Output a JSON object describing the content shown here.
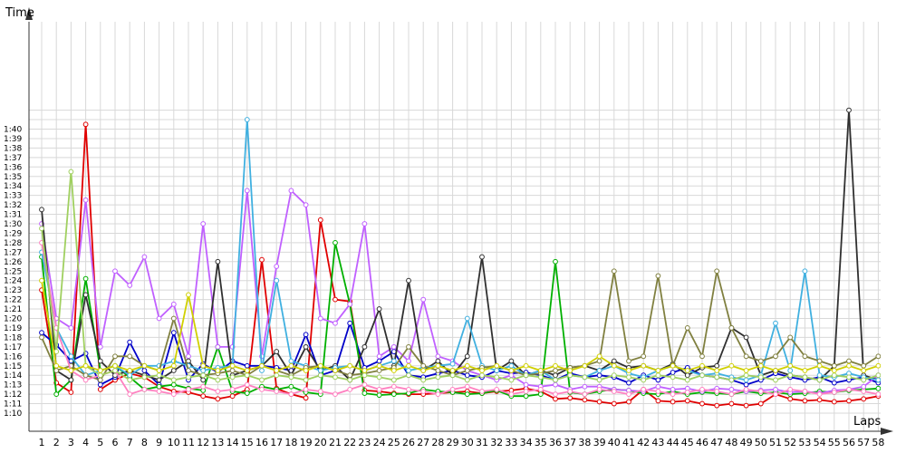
{
  "chart_data": {
    "type": "line",
    "title": "",
    "xlabel": "Laps",
    "ylabel": "Time",
    "x": [
      1,
      2,
      3,
      4,
      5,
      6,
      7,
      8,
      9,
      10,
      11,
      12,
      13,
      14,
      15,
      16,
      17,
      18,
      19,
      20,
      21,
      22,
      23,
      24,
      25,
      26,
      27,
      28,
      29,
      30,
      31,
      32,
      33,
      34,
      35,
      36,
      37,
      38,
      39,
      40,
      41,
      42,
      43,
      44,
      45,
      46,
      47,
      48,
      49,
      50,
      51,
      52,
      53,
      54,
      55,
      56,
      57,
      58
    ],
    "xlim": [
      1,
      58
    ],
    "ylim": [
      68,
      102
    ],
    "y_tick_values": [
      70,
      71,
      72,
      73,
      74,
      75,
      76,
      77,
      78,
      79,
      80,
      81,
      82,
      83,
      84,
      85,
      86,
      87,
      88,
      89,
      90,
      91,
      92,
      93,
      94,
      95,
      96,
      97,
      98,
      99,
      100
    ],
    "y_tick_labels": [
      "1:10",
      "1:11",
      "1:12",
      "1:13",
      "1:14",
      "1:15",
      "1:16",
      "1:17",
      "1:18",
      "1:19",
      "1:20",
      "1:21",
      "1:22",
      "1:23",
      "1:24",
      "1:25",
      "1:26",
      "1:27",
      "1:28",
      "1:29",
      "1:30",
      "1:31",
      "1:32",
      "1:33",
      "1:34",
      "1:35",
      "1:36",
      "1:37",
      "1:38",
      "1:39",
      "1:40"
    ],
    "x_tick_labels": [
      "1",
      "2",
      "3",
      "4",
      "5",
      "6",
      "7",
      "8",
      "9",
      "10",
      "11",
      "12",
      "13",
      "14",
      "15",
      "16",
      "17",
      "18",
      "19",
      "20",
      "21",
      "22",
      "23",
      "24",
      "25",
      "26",
      "27",
      "28",
      "29",
      "30",
      "31",
      "32",
      "33",
      "34",
      "35",
      "36",
      "37",
      "38",
      "39",
      "40",
      "41",
      "42",
      "43",
      "44",
      "45",
      "46",
      "47",
      "48",
      "49",
      "50",
      "51",
      "52",
      "53",
      "54",
      "55",
      "56",
      "57",
      "58"
    ],
    "grid": true,
    "legend": "none",
    "series": [
      {
        "color": "#e00000",
        "values": [
          83,
          73.2,
          72.2,
          100.5,
          72.5,
          73.5,
          74.2,
          73.8,
          72.8,
          72.3,
          72.2,
          71.8,
          71.5,
          71.8,
          72.5,
          86.2,
          72.6,
          72.0,
          71.6,
          90.4,
          82.0,
          81.8,
          72.4,
          72.3,
          72.1,
          72.0,
          72.0,
          72.1,
          72.2,
          72.3,
          72.1,
          72.3,
          72.4,
          72.6,
          72.3,
          71.5,
          71.6,
          71.4,
          71.2,
          71.0,
          71.2,
          72.5,
          71.3,
          71.2,
          71.3,
          71.0,
          70.8,
          71.0,
          70.8,
          71.0,
          72.0,
          71.5,
          71.3,
          71.4,
          71.2,
          71.3,
          71.5,
          71.8
        ]
      },
      {
        "color": "#0000c8",
        "values": [
          78.5,
          77.2,
          75.5,
          76.3,
          73.0,
          73.8,
          77.5,
          74.5,
          73.0,
          78.5,
          73.5,
          75.2,
          74.3,
          75.5,
          75.0,
          75.0,
          74.8,
          74.5,
          78.3,
          74.0,
          74.5,
          79.5,
          74.8,
          75.5,
          76.5,
          74.0,
          73.8,
          74.2,
          74.5,
          74.0,
          73.8,
          74.5,
          74.2,
          74.3,
          74.0,
          73.5,
          74.2,
          73.8,
          74.0,
          73.8,
          73.2,
          74.0,
          73.5,
          74.3,
          74.8,
          74.0,
          73.8,
          73.5,
          73.0,
          73.5,
          74.2,
          73.8,
          73.5,
          73.8,
          73.2,
          73.5,
          73.8,
          73.2
        ]
      },
      {
        "color": "#00b000",
        "values": [
          86.5,
          72.0,
          73.5,
          84.2,
          74.5,
          75.0,
          73.8,
          72.5,
          72.8,
          73.0,
          72.6,
          72.4,
          77.0,
          72.3,
          72.1,
          72.8,
          72.5,
          72.8,
          72.2,
          72.0,
          88.0,
          81.5,
          72.1,
          71.9,
          72.0,
          72.1,
          72.5,
          72.3,
          72.2,
          72.0,
          72.1,
          72.4,
          71.8,
          71.8,
          72.0,
          86.0,
          72.2,
          72.0,
          72.3,
          72.5,
          72.4,
          72.1,
          72.0,
          72.3,
          72.0,
          72.2,
          72.1,
          72.0,
          72.3,
          72.1,
          72.2,
          72.0,
          72.1,
          72.3,
          72.2,
          72.4,
          72.5,
          72.6
        ]
      },
      {
        "color": "#c060ff",
        "values": [
          90.0,
          80.0,
          79.0,
          92.5,
          77.0,
          85.0,
          83.5,
          86.5,
          80.0,
          81.5,
          76.0,
          90.0,
          77.0,
          77.0,
          93.5,
          76.0,
          85.5,
          93.5,
          92.0,
          80.0,
          79.5,
          81.5,
          90.0,
          76.0,
          77.0,
          75.5,
          82.0,
          76.0,
          75.5,
          74.5,
          74.0,
          73.5,
          74.0,
          73.0,
          72.8,
          73.0,
          72.5,
          72.8,
          72.8,
          72.5,
          72.4,
          72.3,
          72.8,
          72.5,
          72.6,
          72.3,
          72.6,
          72.5,
          72.3,
          72.4,
          72.5,
          72.2,
          72.3,
          72.1,
          72.4,
          72.5,
          72.8,
          74.0
        ]
      },
      {
        "color": "#303030",
        "values": [
          91.5,
          74.5,
          73.5,
          82.5,
          75.5,
          74.0,
          74.5,
          74.0,
          73.5,
          74.5,
          75.5,
          73.5,
          86.0,
          74.0,
          74.5,
          75.0,
          76.5,
          74.0,
          77.0,
          74.5,
          75.0,
          73.5,
          77.0,
          81.0,
          75.0,
          84.0,
          74.5,
          75.5,
          74.0,
          76.0,
          86.5,
          74.5,
          75.5,
          74.0,
          74.5,
          74.0,
          74.8,
          75.0,
          74.5,
          75.5,
          74.8,
          75.0,
          74.5,
          75.2,
          74.0,
          74.8,
          75.0,
          79.0,
          78.0,
          74.0,
          74.5,
          74.0,
          73.8,
          73.5,
          75.0,
          102.0,
          74.0,
          73.5
        ]
      },
      {
        "color": "#40b0e0",
        "values": [
          87.0,
          79.0,
          76.0,
          74.0,
          74.5,
          75.0,
          74.0,
          75.0,
          75.0,
          75.5,
          75.0,
          74.5,
          74.8,
          75.0,
          101.0,
          74.5,
          84.0,
          75.5,
          75.0,
          74.5,
          74.8,
          75.0,
          74.5,
          75.0,
          75.5,
          74.5,
          74.8,
          75.0,
          75.2,
          80.0,
          75.0,
          74.5,
          75.0,
          74.0,
          74.5,
          73.5,
          74.0,
          73.8,
          74.5,
          75.0,
          74.2,
          73.8,
          74.5,
          75.0,
          74.5,
          74.0,
          74.2,
          73.8,
          73.5,
          74.0,
          79.5,
          74.5,
          85.0,
          74.0,
          73.8,
          74.2,
          73.8,
          73.5
        ]
      },
      {
        "color": "#808040",
        "values": [
          78.0,
          74.5,
          75.0,
          74.0,
          73.5,
          76.0,
          76.0,
          75.0,
          74.5,
          80.0,
          74.5,
          74.0,
          74.2,
          74.5,
          74.0,
          75.0,
          74.5,
          74.0,
          74.8,
          75.0,
          74.5,
          74.0,
          74.2,
          74.5,
          74.8,
          77.0,
          75.0,
          74.5,
          74.0,
          74.5,
          74.8,
          75.0,
          74.5,
          74.0,
          74.2,
          74.5,
          74.8,
          75.0,
          75.5,
          85.0,
          75.5,
          76.0,
          84.5,
          75.0,
          79.0,
          76.0,
          85.0,
          79.0,
          76.0,
          75.5,
          76.0,
          78.0,
          76.0,
          75.5,
          75.0,
          75.5,
          75.0,
          76.0
        ]
      },
      {
        "color": "#ff80c0",
        "values": [
          88.0,
          79.0,
          74.5,
          73.5,
          74.0,
          74.5,
          72.0,
          72.5,
          72.3,
          72.0,
          72.5,
          72.8,
          72.3,
          72.5,
          73.0,
          72.5,
          72.3,
          72.0,
          72.5,
          72.3,
          72.0,
          72.5,
          73.0,
          72.5,
          72.8,
          72.5,
          72.3,
          72.0,
          72.5,
          72.8,
          72.3,
          72.5,
          72.0,
          72.3,
          72.5,
          72.0,
          72.3,
          72.0,
          72.5,
          72.3,
          72.0,
          72.5,
          72.3,
          72.0,
          72.2,
          72.5,
          72.3,
          72.0,
          72.5,
          72.3,
          72.0,
          72.5,
          72.3,
          72.0,
          72.2,
          72.5,
          72.3,
          72.0
        ]
      },
      {
        "color": "#a0d060",
        "values": [
          89.5,
          76.5,
          95.5,
          75.0,
          74.0,
          74.5,
          73.5,
          73.8,
          74.0,
          73.5,
          73.8,
          74.0,
          73.5,
          73.8,
          74.0,
          73.5,
          74.0,
          73.8,
          73.5,
          74.0,
          73.8,
          73.5,
          74.0,
          73.8,
          73.5,
          74.0,
          73.5,
          73.8,
          74.0,
          73.5,
          74.0,
          73.8,
          73.5,
          74.0,
          73.8,
          73.5,
          74.0,
          73.8,
          73.5,
          74.0,
          73.8,
          73.5,
          74.0,
          73.8,
          73.5,
          74.0,
          73.8,
          73.5,
          74.0,
          73.8,
          73.5,
          74.0,
          73.8,
          73.5,
          74.0,
          73.8,
          73.5,
          74.0
        ]
      },
      {
        "color": "#d0d000",
        "values": [
          84.0,
          75.0,
          74.5,
          75.0,
          74.5,
          75.0,
          74.5,
          75.0,
          74.5,
          75.0,
          82.5,
          75.0,
          74.5,
          75.0,
          74.5,
          75.0,
          74.5,
          75.0,
          74.5,
          75.0,
          74.5,
          75.0,
          74.5,
          75.0,
          74.5,
          75.0,
          74.5,
          75.0,
          74.5,
          75.0,
          74.5,
          75.0,
          74.5,
          75.0,
          74.5,
          75.0,
          74.5,
          75.0,
          76.0,
          75.0,
          74.5,
          75.0,
          74.5,
          75.0,
          74.5,
          75.0,
          74.5,
          75.0,
          74.5,
          75.0,
          74.5,
          75.0,
          74.5,
          75.0,
          74.5,
          75.0,
          74.5,
          75.0
        ]
      }
    ]
  }
}
